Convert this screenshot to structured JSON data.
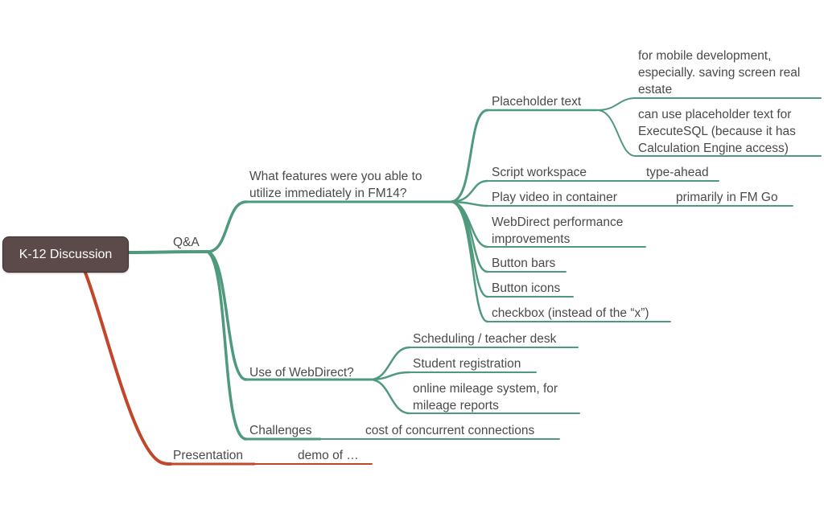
{
  "root": {
    "label": "K-12 Discussion"
  },
  "branches": {
    "qa": {
      "label": "Q&A",
      "features": {
        "label": "What features were you able to\nutilize immediately in FM14?",
        "placeholder": {
          "label": "Placeholder text",
          "mobile": "for mobile development,\nespecially. saving screen real\nestate",
          "executesql": "can use placeholder text for\nExecuteSQL (because it has\nCalculation Engine access)"
        },
        "script_workspace": {
          "label": "Script workspace",
          "note": "type-ahead"
        },
        "play_video": {
          "label": "Play video in container",
          "note": "primarily in FM Go"
        },
        "webdirect_perf": "WebDirect performance\nimprovements",
        "button_bars": "Button bars",
        "button_icons": "Button icons",
        "checkbox": "checkbox (instead of the “x”)"
      },
      "webdirect": {
        "label": "Use of WebDirect?",
        "scheduling": "Scheduling / teacher desk",
        "registration": "Student registration",
        "mileage": "online mileage system, for\nmileage reports"
      },
      "challenges": {
        "label": "Challenges",
        "note": "cost of concurrent connections"
      }
    },
    "presentation": {
      "label": "Presentation",
      "note": "demo of …"
    }
  },
  "colors": {
    "green": "#4f9a7c",
    "red": "#c2462a",
    "root_fill": "#5b4a49"
  }
}
